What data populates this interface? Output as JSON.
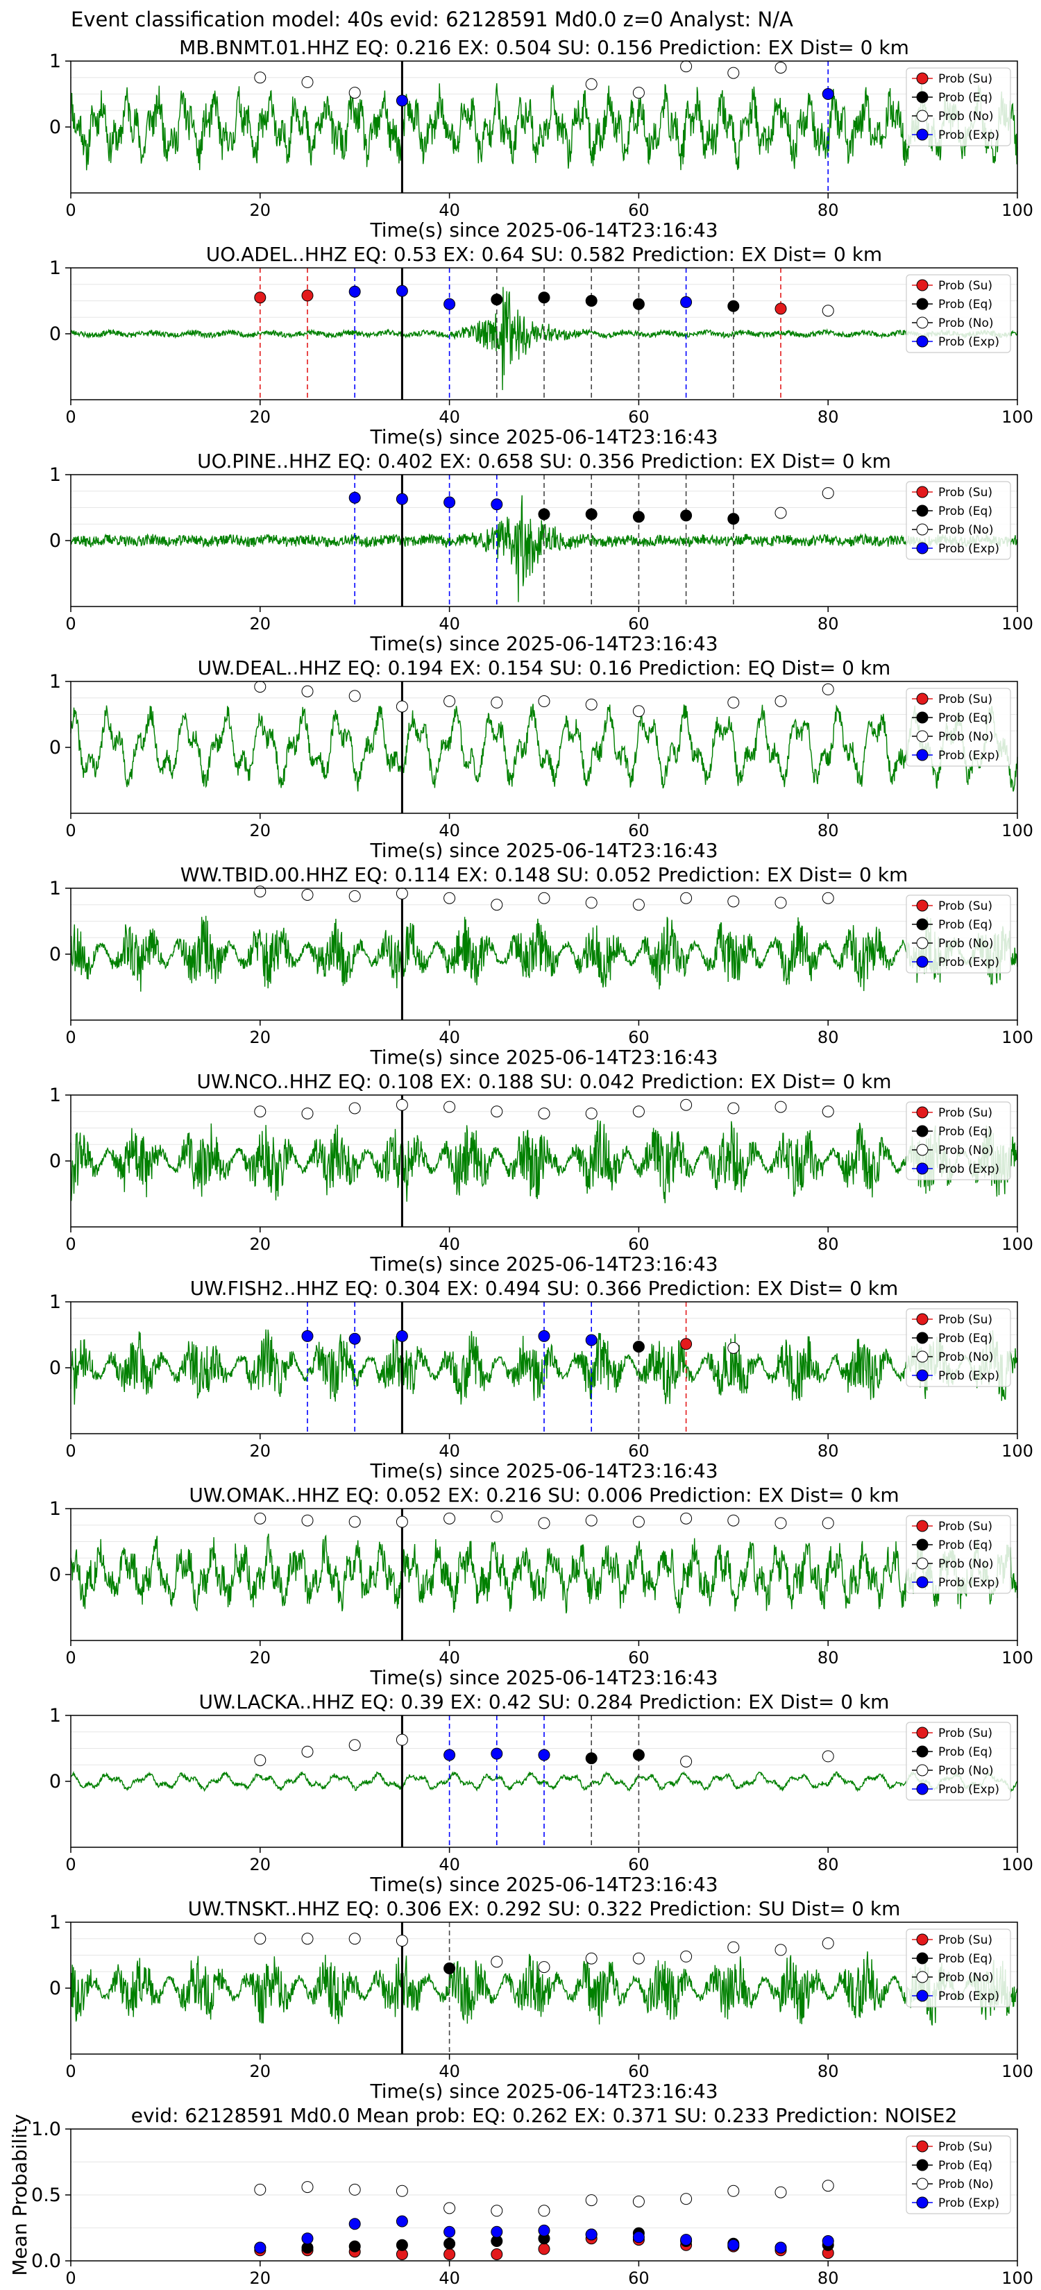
{
  "suptitle": "Event classification model: 40s evid: 62128591 Md0.0 z=0 Analyst: N/A",
  "legend_labels": [
    "Prob (Su)",
    "Prob (Eq)",
    "Prob (No)",
    "Prob (Exp)"
  ],
  "colors": {
    "su": "#e31a1c",
    "eq": "#000000",
    "no": "#ffffff",
    "exp": "#0000ff",
    "trace": "#008000",
    "grid": "#e6e6e6"
  },
  "chart_data": [
    {
      "type": "line",
      "title": "MB.BNMT.01.HHZ   EQ: 0.216   EX: 0.504   SU: 0.156   Prediction: EX    Dist= 0 km",
      "xlabel": "Time(s) since 2025-06-14T23:16:43",
      "xlim": [
        0,
        100
      ],
      "ylim": [
        -1,
        1
      ],
      "xticks": [
        0,
        20,
        40,
        60,
        80,
        100
      ],
      "yticks": [
        0,
        1
      ],
      "event_time": 35,
      "style": "mixed",
      "amp": 0.55,
      "seed": 11,
      "points": [
        {
          "t": 20,
          "p": 0.75,
          "c": "no"
        },
        {
          "t": 25,
          "p": 0.68,
          "c": "no"
        },
        {
          "t": 30,
          "p": 0.52,
          "c": "no"
        },
        {
          "t": 35,
          "p": 0.4,
          "c": "exp"
        },
        {
          "t": 55,
          "p": 0.65,
          "c": "no"
        },
        {
          "t": 60,
          "p": 0.52,
          "c": "no"
        },
        {
          "t": 65,
          "p": 0.92,
          "c": "no"
        },
        {
          "t": 70,
          "p": 0.82,
          "c": "no"
        },
        {
          "t": 75,
          "p": 0.9,
          "c": "no"
        },
        {
          "t": 80,
          "p": 0.5,
          "c": "exp"
        }
      ]
    },
    {
      "type": "line",
      "title": "UO.ADEL..HHZ   EQ: 0.53   EX: 0.64   SU: 0.582   Prediction: EX    Dist= 0 km",
      "xlabel": "Time(s) since 2025-06-14T23:16:43",
      "xlim": [
        0,
        100
      ],
      "ylim": [
        -1,
        1
      ],
      "xticks": [
        0,
        20,
        40,
        60,
        80,
        100
      ],
      "yticks": [
        0,
        1
      ],
      "event_time": 35,
      "style": "quake",
      "amp": 0.04,
      "seed": 23,
      "burst_t": 45.5,
      "burst_amp": 0.9,
      "points": [
        {
          "t": 20,
          "p": 0.55,
          "c": "su"
        },
        {
          "t": 25,
          "p": 0.58,
          "c": "su"
        },
        {
          "t": 30,
          "p": 0.64,
          "c": "exp"
        },
        {
          "t": 35,
          "p": 0.65,
          "c": "exp"
        },
        {
          "t": 40,
          "p": 0.45,
          "c": "exp"
        },
        {
          "t": 45,
          "p": 0.52,
          "c": "eq"
        },
        {
          "t": 50,
          "p": 0.55,
          "c": "eq"
        },
        {
          "t": 55,
          "p": 0.5,
          "c": "eq"
        },
        {
          "t": 60,
          "p": 0.45,
          "c": "eq"
        },
        {
          "t": 65,
          "p": 0.48,
          "c": "exp"
        },
        {
          "t": 70,
          "p": 0.42,
          "c": "eq"
        },
        {
          "t": 75,
          "p": 0.38,
          "c": "su"
        },
        {
          "t": 80,
          "p": 0.35,
          "c": "no"
        }
      ]
    },
    {
      "type": "line",
      "title": "UO.PINE..HHZ   EQ: 0.402   EX: 0.658   SU: 0.356   Prediction: EX    Dist= 0 km",
      "xlabel": "Time(s) since 2025-06-14T23:16:43",
      "xlim": [
        0,
        100
      ],
      "ylim": [
        -1,
        1
      ],
      "xticks": [
        0,
        20,
        40,
        60,
        80,
        100
      ],
      "yticks": [
        0,
        1
      ],
      "event_time": 35,
      "style": "quake",
      "amp": 0.08,
      "seed": 37,
      "burst_t": 47,
      "burst_amp": 1.0,
      "points": [
        {
          "t": 30,
          "p": 0.65,
          "c": "exp"
        },
        {
          "t": 35,
          "p": 0.63,
          "c": "exp"
        },
        {
          "t": 40,
          "p": 0.58,
          "c": "exp"
        },
        {
          "t": 45,
          "p": 0.55,
          "c": "exp"
        },
        {
          "t": 50,
          "p": 0.4,
          "c": "eq"
        },
        {
          "t": 55,
          "p": 0.4,
          "c": "eq"
        },
        {
          "t": 60,
          "p": 0.36,
          "c": "eq"
        },
        {
          "t": 65,
          "p": 0.38,
          "c": "eq"
        },
        {
          "t": 70,
          "p": 0.33,
          "c": "eq"
        },
        {
          "t": 75,
          "p": 0.42,
          "c": "no"
        },
        {
          "t": 80,
          "p": 0.72,
          "c": "no"
        }
      ]
    },
    {
      "type": "line",
      "title": "UW.DEAL..HHZ   EQ: 0.194   EX: 0.154   SU: 0.16   Prediction: EQ    Dist= 0 km",
      "xlabel": "Time(s) since 2025-06-14T23:16:43",
      "xlim": [
        0,
        100
      ],
      "ylim": [
        -1,
        1
      ],
      "xticks": [
        0,
        20,
        40,
        60,
        80,
        100
      ],
      "yticks": [
        0,
        1
      ],
      "event_time": 35,
      "style": "wave",
      "amp": 0.55,
      "seed": 41,
      "points": [
        {
          "t": 20,
          "p": 0.92,
          "c": "no"
        },
        {
          "t": 25,
          "p": 0.85,
          "c": "no"
        },
        {
          "t": 30,
          "p": 0.78,
          "c": "no"
        },
        {
          "t": 35,
          "p": 0.62,
          "c": "no"
        },
        {
          "t": 40,
          "p": 0.7,
          "c": "no"
        },
        {
          "t": 45,
          "p": 0.68,
          "c": "no"
        },
        {
          "t": 50,
          "p": 0.7,
          "c": "no"
        },
        {
          "t": 55,
          "p": 0.65,
          "c": "no"
        },
        {
          "t": 60,
          "p": 0.55,
          "c": "no"
        },
        {
          "t": 70,
          "p": 0.68,
          "c": "no"
        },
        {
          "t": 75,
          "p": 0.7,
          "c": "no"
        },
        {
          "t": 80,
          "p": 0.88,
          "c": "no"
        }
      ]
    },
    {
      "type": "line",
      "title": "WW.TBID.00.HHZ   EQ: 0.114   EX: 0.148   SU: 0.052   Prediction: EX    Dist= 0 km",
      "xlabel": "Time(s) since 2025-06-14T23:16:43",
      "xlim": [
        0,
        100
      ],
      "ylim": [
        -1,
        1
      ],
      "xticks": [
        0,
        20,
        40,
        60,
        80,
        100
      ],
      "yticks": [
        0,
        1
      ],
      "event_time": 35,
      "style": "noise",
      "amp": 0.45,
      "seed": 53,
      "points": [
        {
          "t": 20,
          "p": 0.95,
          "c": "no"
        },
        {
          "t": 25,
          "p": 0.9,
          "c": "no"
        },
        {
          "t": 30,
          "p": 0.88,
          "c": "no"
        },
        {
          "t": 35,
          "p": 0.92,
          "c": "no"
        },
        {
          "t": 40,
          "p": 0.85,
          "c": "no"
        },
        {
          "t": 45,
          "p": 0.75,
          "c": "no"
        },
        {
          "t": 50,
          "p": 0.85,
          "c": "no"
        },
        {
          "t": 55,
          "p": 0.78,
          "c": "no"
        },
        {
          "t": 60,
          "p": 0.75,
          "c": "no"
        },
        {
          "t": 65,
          "p": 0.85,
          "c": "no"
        },
        {
          "t": 70,
          "p": 0.8,
          "c": "no"
        },
        {
          "t": 75,
          "p": 0.78,
          "c": "no"
        },
        {
          "t": 80,
          "p": 0.85,
          "c": "no"
        }
      ]
    },
    {
      "type": "line",
      "title": "UW.NCO..HHZ   EQ: 0.108   EX: 0.188   SU: 0.042   Prediction: EX    Dist= 0 km",
      "xlabel": "Time(s) since 2025-06-14T23:16:43",
      "xlim": [
        0,
        100
      ],
      "ylim": [
        -1,
        1
      ],
      "xticks": [
        0,
        20,
        40,
        60,
        80,
        100
      ],
      "yticks": [
        0,
        1
      ],
      "event_time": 35,
      "style": "noise",
      "amp": 0.5,
      "seed": 61,
      "points": [
        {
          "t": 20,
          "p": 0.75,
          "c": "no"
        },
        {
          "t": 25,
          "p": 0.72,
          "c": "no"
        },
        {
          "t": 30,
          "p": 0.8,
          "c": "no"
        },
        {
          "t": 35,
          "p": 0.85,
          "c": "no"
        },
        {
          "t": 40,
          "p": 0.82,
          "c": "no"
        },
        {
          "t": 45,
          "p": 0.75,
          "c": "no"
        },
        {
          "t": 50,
          "p": 0.72,
          "c": "no"
        },
        {
          "t": 55,
          "p": 0.72,
          "c": "no"
        },
        {
          "t": 60,
          "p": 0.75,
          "c": "no"
        },
        {
          "t": 65,
          "p": 0.85,
          "c": "no"
        },
        {
          "t": 70,
          "p": 0.8,
          "c": "no"
        },
        {
          "t": 75,
          "p": 0.82,
          "c": "no"
        },
        {
          "t": 80,
          "p": 0.75,
          "c": "no"
        }
      ]
    },
    {
      "type": "line",
      "title": "UW.FISH2..HHZ   EQ: 0.304   EX: 0.494   SU: 0.366   Prediction: EX    Dist= 0 km",
      "xlabel": "Time(s) since 2025-06-14T23:16:43",
      "xlim": [
        0,
        100
      ],
      "ylim": [
        -1,
        1
      ],
      "xticks": [
        0,
        20,
        40,
        60,
        80,
        100
      ],
      "yticks": [
        0,
        1
      ],
      "event_time": 35,
      "style": "noise",
      "amp": 0.45,
      "seed": 71,
      "points": [
        {
          "t": 25,
          "p": 0.48,
          "c": "exp"
        },
        {
          "t": 30,
          "p": 0.44,
          "c": "exp"
        },
        {
          "t": 35,
          "p": 0.48,
          "c": "exp"
        },
        {
          "t": 50,
          "p": 0.48,
          "c": "exp"
        },
        {
          "t": 55,
          "p": 0.42,
          "c": "exp"
        },
        {
          "t": 60,
          "p": 0.32,
          "c": "eq"
        },
        {
          "t": 65,
          "p": 0.36,
          "c": "su"
        },
        {
          "t": 70,
          "p": 0.3,
          "c": "no"
        }
      ]
    },
    {
      "type": "line",
      "title": "UW.OMAK..HHZ   EQ: 0.052   EX: 0.216   SU: 0.006   Prediction: EX    Dist= 0 km",
      "xlabel": "Time(s) since 2025-06-14T23:16:43",
      "xlim": [
        0,
        100
      ],
      "ylim": [
        -1,
        1
      ],
      "xticks": [
        0,
        20,
        40,
        60,
        80,
        100
      ],
      "yticks": [
        0,
        1
      ],
      "event_time": 35,
      "style": "mixed",
      "amp": 0.5,
      "seed": 83,
      "points": [
        {
          "t": 20,
          "p": 0.85,
          "c": "no"
        },
        {
          "t": 25,
          "p": 0.82,
          "c": "no"
        },
        {
          "t": 30,
          "p": 0.8,
          "c": "no"
        },
        {
          "t": 35,
          "p": 0.8,
          "c": "no"
        },
        {
          "t": 40,
          "p": 0.85,
          "c": "no"
        },
        {
          "t": 45,
          "p": 0.88,
          "c": "no"
        },
        {
          "t": 50,
          "p": 0.78,
          "c": "no"
        },
        {
          "t": 55,
          "p": 0.82,
          "c": "no"
        },
        {
          "t": 60,
          "p": 0.8,
          "c": "no"
        },
        {
          "t": 65,
          "p": 0.85,
          "c": "no"
        },
        {
          "t": 70,
          "p": 0.82,
          "c": "no"
        },
        {
          "t": 75,
          "p": 0.78,
          "c": "no"
        },
        {
          "t": 80,
          "p": 0.78,
          "c": "no"
        }
      ]
    },
    {
      "type": "line",
      "title": "UW.LACKA..HHZ   EQ: 0.39   EX: 0.42   SU: 0.284   Prediction: EX    Dist= 0 km",
      "xlabel": "Time(s) since 2025-06-14T23:16:43",
      "xlim": [
        0,
        100
      ],
      "ylim": [
        -1,
        1
      ],
      "xticks": [
        0,
        20,
        40,
        60,
        80,
        100
      ],
      "yticks": [
        0,
        1
      ],
      "event_time": 35,
      "style": "wave",
      "amp": 0.12,
      "seed": 97,
      "points": [
        {
          "t": 20,
          "p": 0.32,
          "c": "no"
        },
        {
          "t": 25,
          "p": 0.45,
          "c": "no"
        },
        {
          "t": 30,
          "p": 0.55,
          "c": "no"
        },
        {
          "t": 35,
          "p": 0.63,
          "c": "no"
        },
        {
          "t": 40,
          "p": 0.4,
          "c": "exp"
        },
        {
          "t": 45,
          "p": 0.42,
          "c": "exp"
        },
        {
          "t": 50,
          "p": 0.4,
          "c": "exp"
        },
        {
          "t": 55,
          "p": 0.35,
          "c": "eq"
        },
        {
          "t": 60,
          "p": 0.4,
          "c": "eq"
        },
        {
          "t": 65,
          "p": 0.3,
          "c": "no"
        },
        {
          "t": 80,
          "p": 0.38,
          "c": "no"
        }
      ]
    },
    {
      "type": "line",
      "title": "UW.TNSKT..HHZ   EQ: 0.306   EX: 0.292   SU: 0.322   Prediction: SU    Dist= 0 km",
      "xlabel": "Time(s) since 2025-06-14T23:16:43",
      "xlim": [
        0,
        100
      ],
      "ylim": [
        -1,
        1
      ],
      "xticks": [
        0,
        20,
        40,
        60,
        80,
        100
      ],
      "yticks": [
        0,
        1
      ],
      "event_time": 35,
      "style": "noise",
      "amp": 0.45,
      "seed": 101,
      "points": [
        {
          "t": 20,
          "p": 0.75,
          "c": "no"
        },
        {
          "t": 25,
          "p": 0.75,
          "c": "no"
        },
        {
          "t": 30,
          "p": 0.75,
          "c": "no"
        },
        {
          "t": 35,
          "p": 0.72,
          "c": "no"
        },
        {
          "t": 40,
          "p": 0.3,
          "c": "eq"
        },
        {
          "t": 45,
          "p": 0.4,
          "c": "no"
        },
        {
          "t": 50,
          "p": 0.32,
          "c": "no"
        },
        {
          "t": 55,
          "p": 0.45,
          "c": "no"
        },
        {
          "t": 60,
          "p": 0.45,
          "c": "no"
        },
        {
          "t": 65,
          "p": 0.48,
          "c": "no"
        },
        {
          "t": 70,
          "p": 0.62,
          "c": "no"
        },
        {
          "t": 75,
          "p": 0.58,
          "c": "no"
        },
        {
          "t": 80,
          "p": 0.68,
          "c": "no"
        }
      ]
    },
    {
      "type": "scatter",
      "title": "evid: 62128591  Md0.0   Mean prob:   EQ: 0.262  EX: 0.371  SU: 0.233   Prediction: NOISE2",
      "ylabel": "Mean Probability",
      "xlim": [
        0,
        100
      ],
      "ylim": [
        0,
        1
      ],
      "xticks": [
        0,
        20,
        40,
        60,
        80,
        100
      ],
      "yticks": [
        0,
        0.5,
        1
      ],
      "ytick_labels": [
        "0.0",
        "0.5",
        "1.0"
      ],
      "x": [
        20,
        25,
        30,
        35,
        40,
        45,
        50,
        55,
        60,
        65,
        70,
        75,
        80
      ],
      "series": [
        {
          "name": "Prob (Su)",
          "c": "su",
          "values": [
            0.08,
            0.08,
            0.07,
            0.05,
            0.05,
            0.05,
            0.09,
            0.17,
            0.16,
            0.12,
            0.11,
            0.08,
            0.06
          ]
        },
        {
          "name": "Prob (Eq)",
          "c": "eq",
          "values": [
            0.1,
            0.1,
            0.11,
            0.12,
            0.13,
            0.15,
            0.17,
            0.2,
            0.21,
            0.15,
            0.13,
            0.1,
            0.12
          ]
        },
        {
          "name": "Prob (No)",
          "c": "no",
          "values": [
            0.54,
            0.56,
            0.54,
            0.53,
            0.4,
            0.38,
            0.38,
            0.46,
            0.45,
            0.47,
            0.53,
            0.52,
            0.57
          ]
        },
        {
          "name": "Prob (Exp)",
          "c": "exp",
          "values": [
            0.1,
            0.17,
            0.28,
            0.3,
            0.22,
            0.22,
            0.23,
            0.2,
            0.18,
            0.16,
            0.12,
            0.1,
            0.15
          ]
        }
      ]
    }
  ]
}
